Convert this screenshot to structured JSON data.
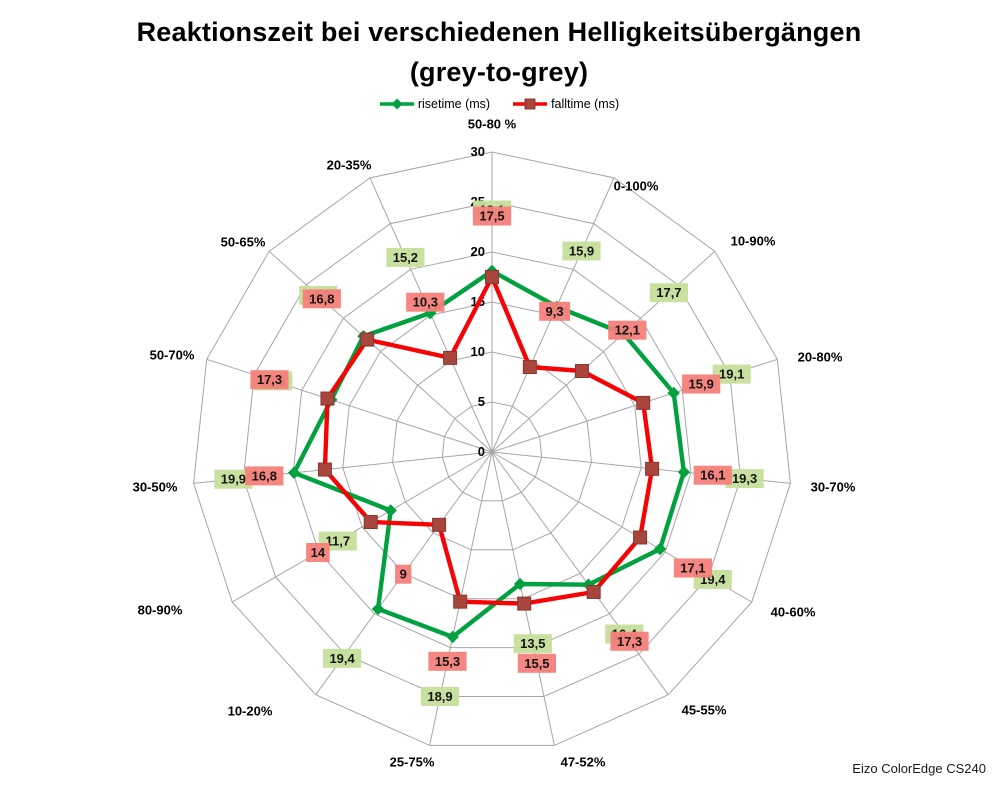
{
  "title": "Reaktionszeit bei verschiedenen Helligkeitsübergängen",
  "subtitle": "(grey-to-grey)",
  "footer": "Eizo ColorEdge CS240",
  "legend": {
    "risetime": "risetime (ms)",
    "falltime": "falltime (ms)"
  },
  "colors": {
    "risetime_line": "#00A13E",
    "risetime_label_bg": "#C6DF9B",
    "falltime_line": "#F40404",
    "falltime_marker": "#A8453C",
    "falltime_marker_border": "#87372F",
    "falltime_label_bg": "#F5807A",
    "grid": "#A6A6A6",
    "label_text": "#141414"
  },
  "chart_data": {
    "type": "radar",
    "title": "Reaktionszeit bei verschiedenen Helligkeitsübergängen (grey-to-grey)",
    "legend_position": "top",
    "grid": true,
    "axis": {
      "min": 0,
      "max": 30,
      "step": 5
    },
    "categories": [
      "50-80 %",
      "0-100%",
      "10-90%",
      "20-80%",
      "30-70%",
      "40-60%",
      "45-55%",
      "47-52%",
      "25-75%",
      "10-20%",
      "80-90%",
      "30-50%",
      "50-70%",
      "50-65%",
      "20-35%"
    ],
    "series": [
      {
        "name": "risetime (ms)",
        "values": [
          18.1,
          15.9,
          17.7,
          19.1,
          19.3,
          19.4,
          16.4,
          13.5,
          18.9,
          19.4,
          11.7,
          19.9,
          16.9,
          17.3,
          15.2
        ]
      },
      {
        "name": "falltime (ms)",
        "values": [
          17.5,
          9.3,
          12.1,
          15.9,
          16.1,
          17.1,
          17.3,
          15.5,
          15.3,
          9,
          14,
          16.8,
          17.3,
          16.8,
          10.3
        ]
      }
    ]
  }
}
